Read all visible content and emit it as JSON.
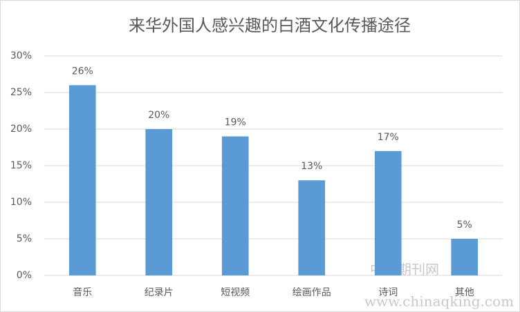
{
  "chart_data": {
    "type": "bar",
    "title": "来华外国人感兴趣的白酒文化传播途径",
    "categories": [
      "音乐",
      "纪录片",
      "短视频",
      "绘画作品",
      "诗词",
      "其他"
    ],
    "values": [
      26,
      20,
      19,
      13,
      17,
      5
    ],
    "value_labels": [
      "26%",
      "20%",
      "19%",
      "13%",
      "17%",
      "5%"
    ],
    "color": "#5b9bd5",
    "ylim": [
      0,
      30
    ],
    "yticks": [
      {
        "value": 0,
        "label": "0%"
      },
      {
        "value": 5,
        "label": "5%"
      },
      {
        "value": 10,
        "label": "10%"
      },
      {
        "value": 15,
        "label": "15%"
      },
      {
        "value": 20,
        "label": "20%"
      },
      {
        "value": 25,
        "label": "25%"
      },
      {
        "value": 30,
        "label": "30%"
      }
    ],
    "grid": true,
    "watermark": [
      "中国期刊网",
      "www.chinaqking.com"
    ]
  }
}
